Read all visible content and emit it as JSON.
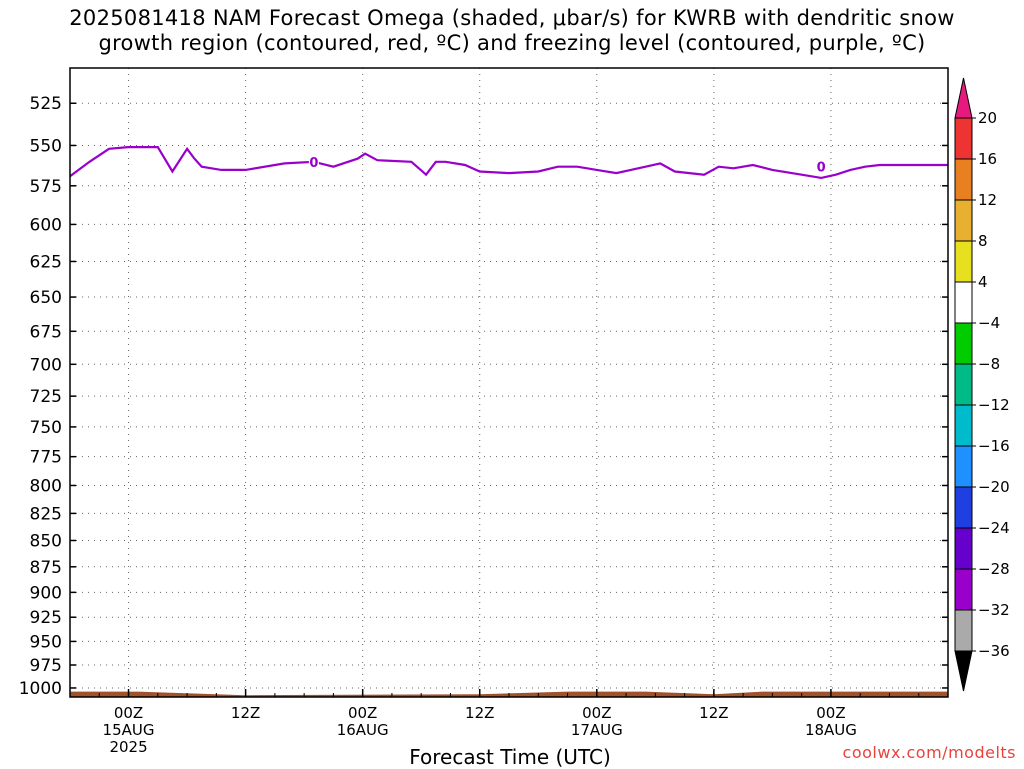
{
  "title_line1": "2025081418 NAM Forecast Omega (shaded, μbar/s) for KWRB with dendritic snow",
  "title_line2": "growth region (contoured, red, ºC) and freezing level (contoured, purple, ºC)",
  "credit": "coolwx.com/modelts",
  "chart_data": {
    "type": "line",
    "title": "2025081418 NAM Forecast Omega (shaded, μbar/s) for KWRB with dendritic snow growth region (contoured, red, ºC) and freezing level (contoured, purple, ºC)",
    "xlabel": "Forecast Time (UTC)",
    "ylabel": "",
    "y_scale": "log",
    "y_inverted": true,
    "ylim": [
      1010,
      505
    ],
    "grid": true,
    "y_ticks": [
      525,
      550,
      575,
      600,
      625,
      650,
      675,
      700,
      725,
      750,
      775,
      800,
      825,
      850,
      875,
      900,
      925,
      950,
      975,
      1000
    ],
    "xlim": [
      "2025-08-14T18:00Z",
      "2025-08-18T12:00Z"
    ],
    "x_ticks": [
      {
        "label": "00Z",
        "sublabel": "15AUG",
        "year": "2025",
        "time": "2025-08-15T00:00Z"
      },
      {
        "label": "12Z",
        "sublabel": "",
        "year": "",
        "time": "2025-08-15T12:00Z"
      },
      {
        "label": "00Z",
        "sublabel": "16AUG",
        "year": "",
        "time": "2025-08-16T00:00Z"
      },
      {
        "label": "12Z",
        "sublabel": "",
        "year": "",
        "time": "2025-08-16T12:00Z"
      },
      {
        "label": "00Z",
        "sublabel": "17AUG",
        "year": "",
        "time": "2025-08-17T00:00Z"
      },
      {
        "label": "12Z",
        "sublabel": "",
        "year": "",
        "time": "2025-08-17T12:00Z"
      },
      {
        "label": "00Z",
        "sublabel": "18AUG",
        "year": "",
        "time": "2025-08-18T00:00Z"
      }
    ],
    "series": [
      {
        "name": "0",
        "color": "#9900cc",
        "x": [
          "2025-08-14T18:00Z",
          "2025-08-14T20:00Z",
          "2025-08-14T22:00Z",
          "2025-08-15T00:00Z",
          "2025-08-15T03:00Z",
          "2025-08-15T04:30Z",
          "2025-08-15T06:00Z",
          "2025-08-15T06:45Z",
          "2025-08-15T07:30Z",
          "2025-08-15T08:30Z",
          "2025-08-15T09:30Z",
          "2025-08-15T12:00Z",
          "2025-08-15T16:00Z",
          "2025-08-15T19:00Z",
          "2025-08-15T21:00Z",
          "2025-08-15T23:30Z",
          "2025-08-16T00:15Z",
          "2025-08-16T01:30Z",
          "2025-08-16T05:00Z",
          "2025-08-16T06:30Z",
          "2025-08-16T07:30Z",
          "2025-08-16T08:30Z",
          "2025-08-16T10:30Z",
          "2025-08-16T12:00Z",
          "2025-08-16T15:00Z",
          "2025-08-16T18:00Z",
          "2025-08-16T20:00Z",
          "2025-08-16T22:00Z",
          "2025-08-17T00:00Z",
          "2025-08-17T02:00Z",
          "2025-08-17T03:30Z",
          "2025-08-17T05:00Z",
          "2025-08-17T06:30Z",
          "2025-08-17T08:00Z",
          "2025-08-17T11:00Z",
          "2025-08-17T12:30Z",
          "2025-08-17T14:00Z",
          "2025-08-17T16:00Z",
          "2025-08-17T18:00Z",
          "2025-08-17T21:00Z",
          "2025-08-17T23:00Z",
          "2025-08-18T00:30Z",
          "2025-08-18T02:00Z",
          "2025-08-18T03:30Z",
          "2025-08-18T05:00Z",
          "2025-08-18T06:30Z",
          "2025-08-18T08:30Z",
          "2025-08-18T10:00Z",
          "2025-08-18T12:00Z"
        ],
        "y": [
          569,
          560,
          552,
          551,
          551,
          566,
          552,
          558,
          563,
          564,
          565,
          565,
          561,
          560,
          563,
          558,
          555,
          559,
          560,
          568,
          560,
          560,
          562,
          566,
          567,
          566,
          563,
          563,
          565,
          567,
          565,
          563,
          561,
          566,
          568,
          563,
          564,
          562,
          565,
          568,
          570,
          568,
          565,
          563,
          562,
          562,
          562,
          562,
          562
        ]
      }
    ],
    "contour_labels": [
      {
        "text": "0",
        "time": "2025-08-15T19:00Z",
        "level": 560
      },
      {
        "text": "0",
        "time": "2025-08-17T23:00Z",
        "level": 563
      }
    ],
    "terrain": {
      "color": "#a0522d",
      "x": [
        "2025-08-14T18:00Z",
        "2025-08-15T01:00Z",
        "2025-08-15T12:00Z",
        "2025-08-16T12:00Z",
        "2025-08-16T21:00Z",
        "2025-08-17T05:00Z",
        "2025-08-17T12:00Z",
        "2025-08-17T17:00Z",
        "2025-08-18T12:00Z"
      ],
      "y": [
        1004,
        1004,
        1008,
        1007,
        1004,
        1004,
        1007,
        1004,
        1004
      ]
    },
    "colorbar": {
      "levels": [
        -36,
        -32,
        -28,
        -24,
        -20,
        -16,
        -12,
        -8,
        -4,
        4,
        8,
        12,
        16,
        20
      ],
      "colors": [
        "#000000",
        "#aaaaaa",
        "#9900cc",
        "#6600cc",
        "#1f3fe0",
        "#1e90ff",
        "#00bbcc",
        "#00bb88",
        "#00cc00",
        "#ffffff",
        "#e6e01e",
        "#e8b030",
        "#e87f20",
        "#ee3333",
        "#e6197f"
      ]
    }
  }
}
